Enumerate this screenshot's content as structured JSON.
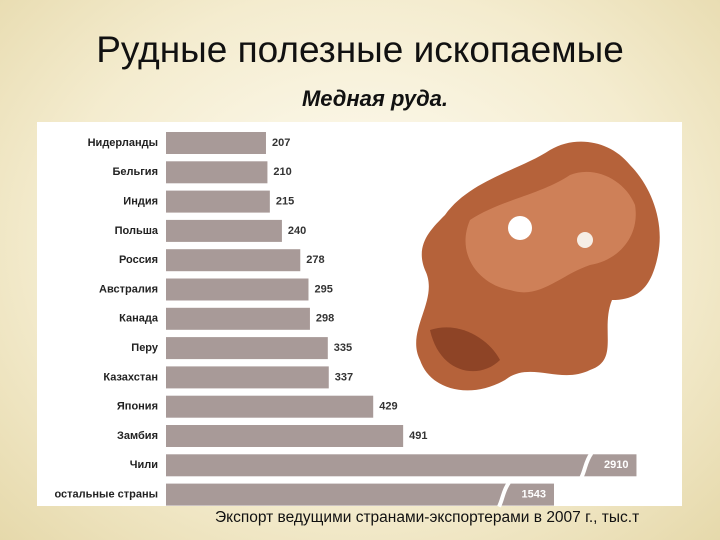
{
  "chart_data": {
    "type": "bar",
    "orientation": "horizontal",
    "title": "Рудные полезные ископаемые",
    "subtitle": "Медная руда.",
    "caption": "Экспорт ведущими странами-экспортерами в 2007 г., тыс.т",
    "categories": [
      "Нидерланды",
      "Бельгия",
      "Индия",
      "Польша",
      "Россия",
      "Австралия",
      "Канада",
      "Перу",
      "Казахстан",
      "Япония",
      "Замбия",
      "Чили",
      "остальные страны"
    ],
    "values": [
      207,
      210,
      215,
      240,
      278,
      295,
      298,
      335,
      337,
      429,
      491,
      2910,
      1543
    ],
    "color": "#a89a98",
    "axis_break": true
  }
}
